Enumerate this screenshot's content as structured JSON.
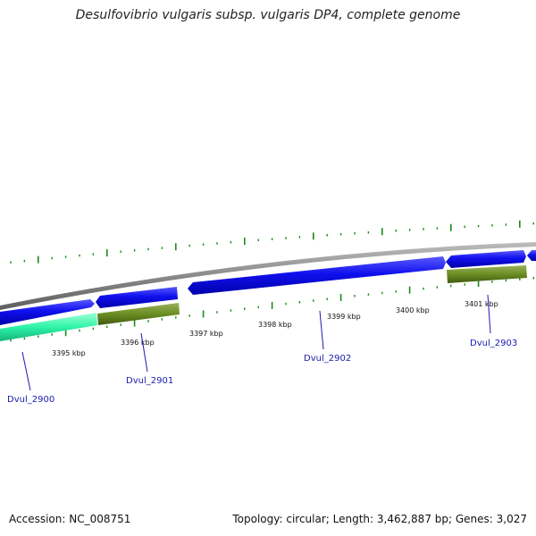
{
  "title": "Desulfovibrio vulgaris subsp. vulgaris DP4, complete genome",
  "footer": {
    "accession": "Accession: NC_008751",
    "summary": "Topology: circular; Length: 3,462,887 bp; Genes: 3,027"
  },
  "colors": {
    "gene_forward": "#1010ee",
    "gene_reverse": "#2ef5a8",
    "cds_olive": "#6b8e23",
    "backbone": "#8a8a8a",
    "tick": "#1b8a1b",
    "label": "#1a1ab0"
  },
  "tick_labels": [
    "3395 kbp",
    "3396 kbp",
    "3397 kbp",
    "3398 kbp",
    "3399 kbp",
    "3400 kbp",
    "3401 kbp"
  ],
  "gene_labels": [
    "Dvul_2900",
    "Dvul_2901",
    "Dvul_2902",
    "Dvul_2903"
  ]
}
